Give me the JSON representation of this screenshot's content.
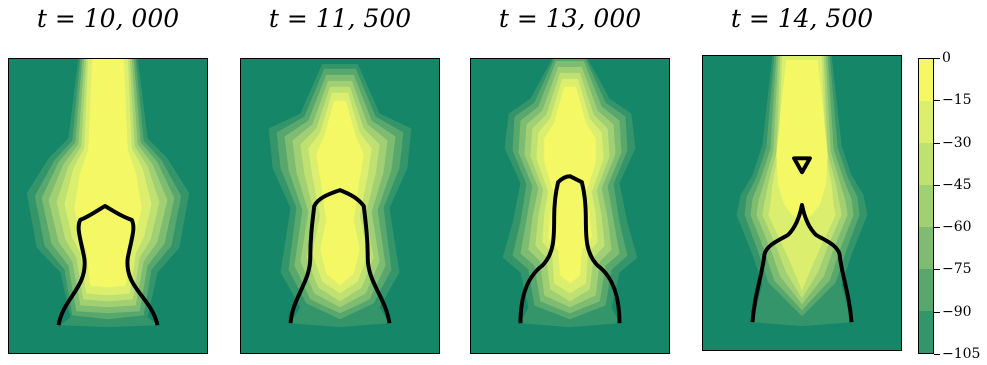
{
  "chart_data": [
    {
      "type": "heatmap",
      "title": "t = 10, 000",
      "colorbar": {
        "min": -105,
        "max": 0,
        "step": 15
      }
    },
    {
      "type": "heatmap",
      "title": "t = 11, 500",
      "colorbar": {
        "min": -105,
        "max": 0,
        "step": 15
      }
    },
    {
      "type": "heatmap",
      "title": "t = 13, 000",
      "colorbar": {
        "min": -105,
        "max": 0,
        "step": 15
      }
    },
    {
      "type": "heatmap",
      "title": "t = 14, 500",
      "colorbar": {
        "min": -105,
        "max": 0,
        "step": 15
      }
    }
  ],
  "colorbar": {
    "ticks": [
      "0",
      "−15",
      "−30",
      "−45",
      "−60",
      "−75",
      "−90",
      "−105"
    ],
    "levels": [
      0,
      -15,
      -30,
      -45,
      -60,
      -75,
      -90,
      -105
    ],
    "colors": [
      "#f4f864",
      "#dcee6e",
      "#bfe172",
      "#a0d073",
      "#7dbc71",
      "#58a86d",
      "#35956a",
      "#168669"
    ]
  },
  "colors": {
    "background": "#168669",
    "interface_line": "#000000"
  }
}
